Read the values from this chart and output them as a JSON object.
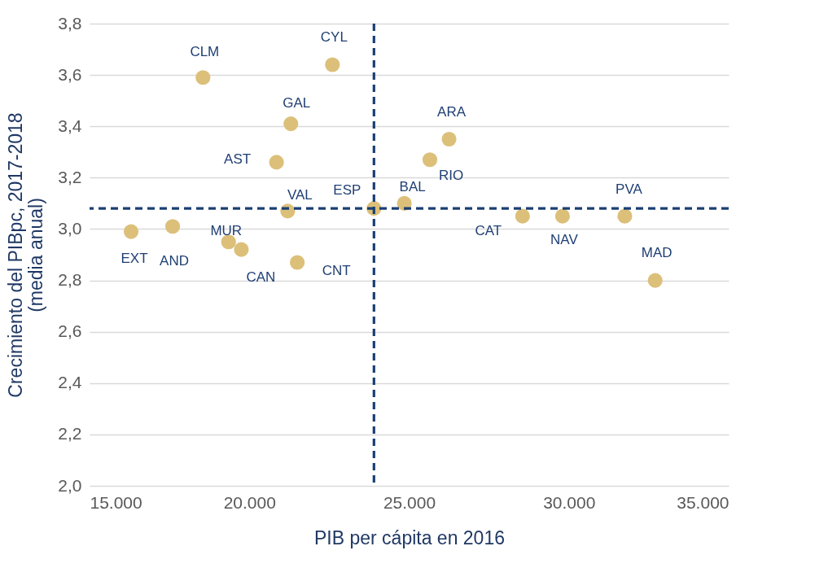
{
  "chart_data": {
    "type": "scatter",
    "xlabel": "PIB per cápita en 2016",
    "ylabel": "Crecimiento del PIBpc, 2017-2018\n(media anual)",
    "x": [
      16300,
      17600,
      18550,
      19350,
      19750,
      20850,
      21300,
      21200,
      21500,
      22600,
      23900,
      24850,
      25650,
      26250,
      28550,
      29800,
      31750,
      32700
    ],
    "series": [
      {
        "color": "#dcc07a",
        "values": [
          2.99,
          3.01,
          3.59,
          2.95,
          2.92,
          3.26,
          3.41,
          3.07,
          2.87,
          3.64,
          3.08,
          3.1,
          3.27,
          3.35,
          3.05,
          3.05,
          3.05,
          2.8
        ]
      }
    ],
    "annotations": [
      {
        "text": "EXT",
        "x": 16300,
        "y": 2.99
      },
      {
        "text": "AND",
        "x": 17600,
        "y": 3.01
      },
      {
        "text": "CLM",
        "x": 18550,
        "y": 3.59
      },
      {
        "text": "MUR",
        "x": 19350,
        "y": 2.95
      },
      {
        "text": "CAN",
        "x": 19750,
        "y": 2.92
      },
      {
        "text": "AST",
        "x": 20850,
        "y": 3.26
      },
      {
        "text": "GAL",
        "x": 21300,
        "y": 3.41
      },
      {
        "text": "VAL",
        "x": 21200,
        "y": 3.07
      },
      {
        "text": "CNT",
        "x": 21500,
        "y": 2.87
      },
      {
        "text": "CYL",
        "x": 22600,
        "y": 3.64
      },
      {
        "text": "ESP",
        "x": 23900,
        "y": 3.08
      },
      {
        "text": "BAL",
        "x": 24850,
        "y": 3.1
      },
      {
        "text": "RIO",
        "x": 25650,
        "y": 3.27
      },
      {
        "text": "ARA",
        "x": 26250,
        "y": 3.35
      },
      {
        "text": "CAT",
        "x": 28550,
        "y": 3.05
      },
      {
        "text": "NAV",
        "x": 29800,
        "y": 3.05
      },
      {
        "text": "PVA",
        "x": 31750,
        "y": 3.05
      },
      {
        "text": "MAD",
        "x": 32700,
        "y": 2.8
      }
    ],
    "ref_lines": [
      {
        "axis": "x",
        "value": 23900,
        "color": "#1a3f73",
        "line_style": "dashed"
      },
      {
        "axis": "y",
        "value": 3.08,
        "color": "#1a3f73",
        "line_style": "dashed"
      }
    ],
    "xlim": [
      15000,
      35000
    ],
    "xticks": [
      {
        "value": 15000,
        "label": "15.000"
      },
      {
        "value": 20000,
        "label": "20.000"
      },
      {
        "value": 25000,
        "label": "25.000"
      },
      {
        "value": 30000,
        "label": "30.000"
      },
      {
        "value": 35000,
        "label": "35.000"
      }
    ],
    "ylim": [
      2.0,
      3.8
    ],
    "yticks": [
      {
        "value": 2.0,
        "label": "2,0"
      },
      {
        "value": 2.2,
        "label": "2,2"
      },
      {
        "value": 2.4,
        "label": "2,4"
      },
      {
        "value": 2.6,
        "label": "2,6"
      },
      {
        "value": 2.8,
        "label": "2,8"
      },
      {
        "value": 3.0,
        "label": "3,0"
      },
      {
        "value": 3.2,
        "label": "3,2"
      },
      {
        "value": 3.4,
        "label": "3,4"
      },
      {
        "value": 3.6,
        "label": "3,6"
      },
      {
        "value": 3.8,
        "label": "3,8"
      }
    ],
    "grid": "y",
    "marker": "circle"
  }
}
